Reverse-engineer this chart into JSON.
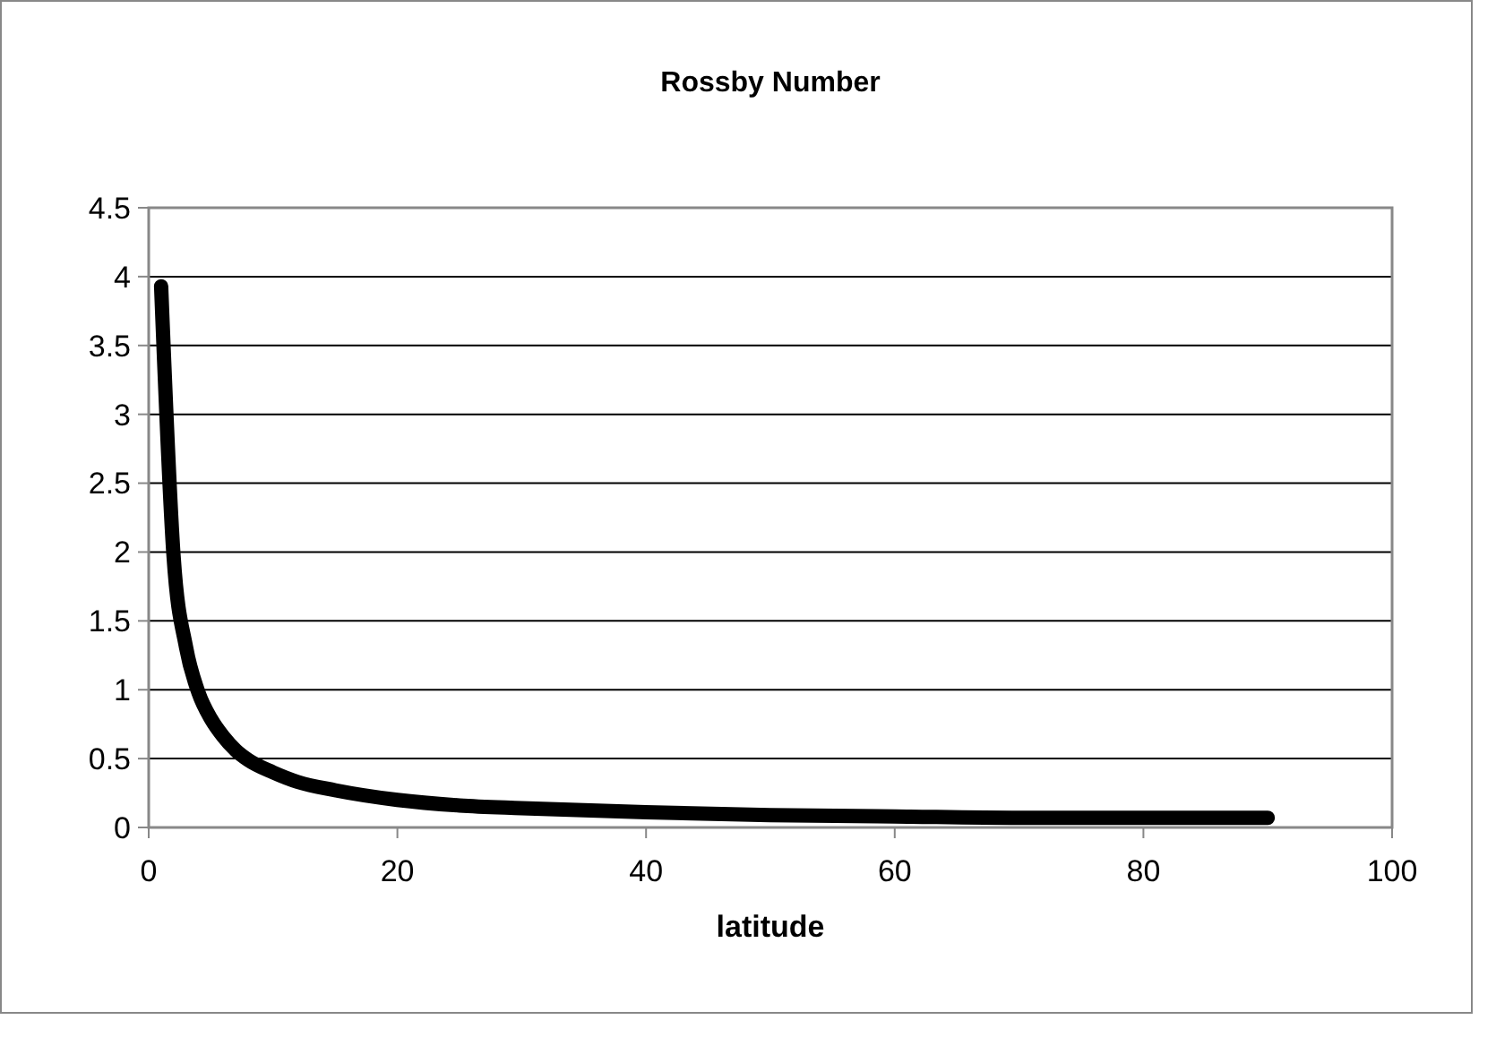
{
  "chart_data": {
    "type": "line",
    "title": "Rossby Number",
    "xlabel": "latitude",
    "x": [
      1,
      2,
      3,
      4,
      5,
      6,
      7,
      8,
      10,
      12,
      15,
      20,
      25,
      30,
      40,
      50,
      60,
      70,
      80,
      90
    ],
    "series": [
      {
        "color": "#000000",
        "values": [
          3.93,
          1.97,
          1.31,
          0.98,
          0.79,
          0.66,
          0.56,
          0.49,
          0.4,
          0.33,
          0.27,
          0.2,
          0.16,
          0.14,
          0.11,
          0.09,
          0.08,
          0.07,
          0.07,
          0.07
        ]
      }
    ],
    "xlim": [
      0,
      100
    ],
    "xticks": [
      0,
      20,
      40,
      60,
      80,
      100
    ],
    "ylim": [
      0,
      4.5
    ],
    "yticks": [
      0,
      {
        "value": 0.5,
        "label": "0.5"
      },
      1,
      {
        "value": 1.5,
        "label": "1.5"
      },
      2,
      {
        "value": 2.5,
        "label": "2.5"
      },
      3,
      {
        "value": 3.5,
        "label": "3.5"
      },
      4,
      {
        "value": 4.5,
        "label": "4.5"
      }
    ],
    "grid": "y",
    "marker": "none",
    "line_style": "solid"
  }
}
